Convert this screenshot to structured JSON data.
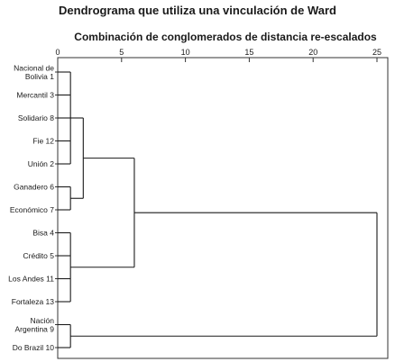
{
  "title": "Dendrograma que utiliza una vinculación de Ward",
  "subtitle": "Combinación de conglomerados de distancia re-escalados",
  "axis": {
    "ticks": [
      "0",
      "5",
      "10",
      "15",
      "20",
      "25"
    ],
    "values": [
      0,
      5,
      10,
      15,
      20,
      25
    ],
    "range": [
      0,
      25
    ]
  },
  "leaves": [
    {
      "id": 1,
      "label": [
        "Nacional de",
        "Bolivia 1"
      ]
    },
    {
      "id": 3,
      "label": [
        "Mercantil 3"
      ]
    },
    {
      "id": 8,
      "label": [
        "Solidario 8"
      ]
    },
    {
      "id": 12,
      "label": [
        "Fie 12"
      ]
    },
    {
      "id": 2,
      "label": [
        "Unión 2"
      ]
    },
    {
      "id": 6,
      "label": [
        "Ganadero 6"
      ]
    },
    {
      "id": 7,
      "label": [
        "Económico 7"
      ]
    },
    {
      "id": 4,
      "label": [
        "Bisa 4"
      ]
    },
    {
      "id": 5,
      "label": [
        "Crédito 5"
      ]
    },
    {
      "id": 11,
      "label": [
        "Los Andes 11"
      ]
    },
    {
      "id": 13,
      "label": [
        "Fortaleza 13"
      ]
    },
    {
      "id": 9,
      "label": [
        "Nación",
        "Argentina 9"
      ]
    },
    {
      "id": 10,
      "label": [
        "Do Brazil 10"
      ]
    }
  ],
  "merges": [
    {
      "children": [
        0,
        1,
        2,
        3,
        4
      ],
      "height": 1.0
    },
    {
      "children": [
        5,
        6
      ],
      "height": 1.0
    },
    {
      "children": [
        7,
        8,
        9,
        10
      ],
      "height": 1.0
    },
    {
      "children": [
        11,
        12
      ],
      "height": 1.0
    },
    {
      "children": [
        "m0",
        "m1"
      ],
      "height": 2.0
    },
    {
      "children": [
        "m4",
        "m2"
      ],
      "height": 6.0
    },
    {
      "children": [
        "m5",
        "m3"
      ],
      "height": 25.0
    }
  ]
}
